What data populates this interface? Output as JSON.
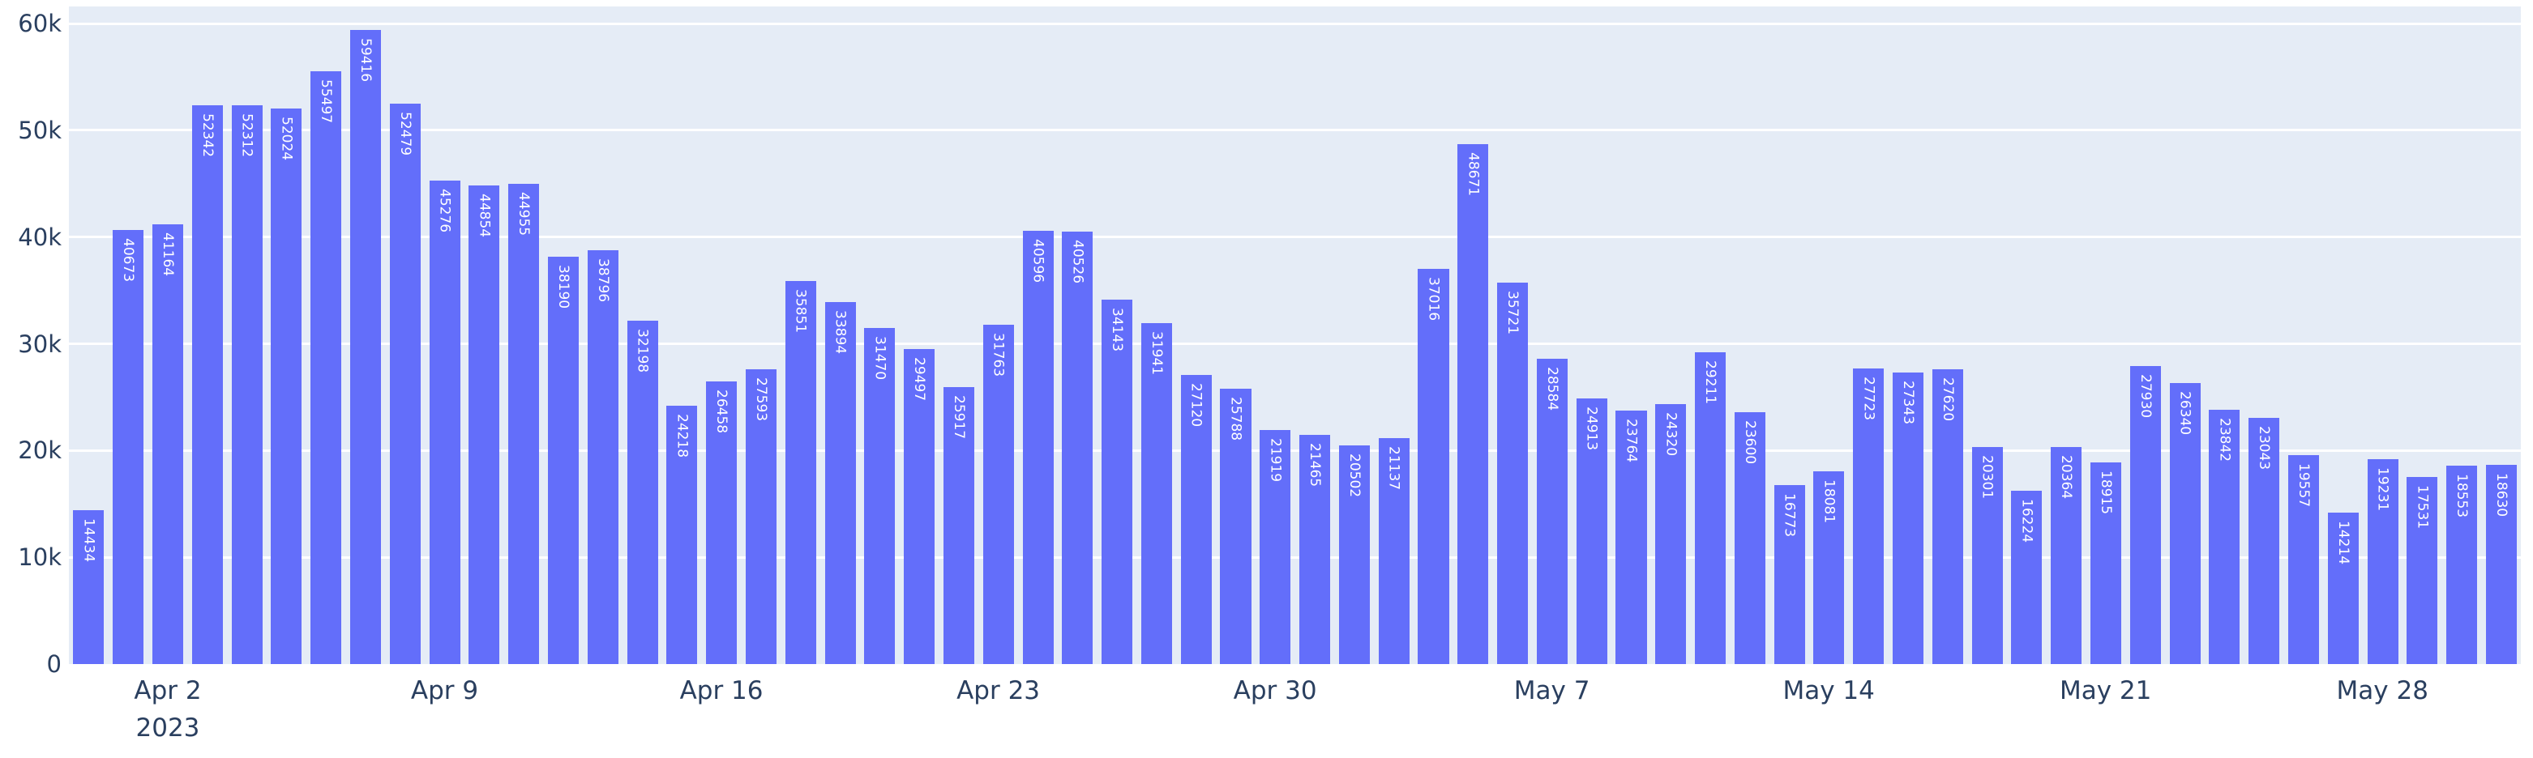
{
  "chart": {
    "colors": {
      "figure_background": "#ffffff",
      "plot_background": "#e5ecf6",
      "bar_fill": "#636efa",
      "gridline": "#ffffff",
      "tick_text": "#2a3f5f",
      "bar_label_text": "#ffffff"
    }
  },
  "chart_data": {
    "type": "bar",
    "title": "",
    "xlabel": "",
    "ylabel": "",
    "grid": true,
    "legend": "none",
    "bar_value_labels_style": "inside top, rotated 90deg, white",
    "ylim": [
      0,
      61600
    ],
    "x": [
      "2023-03-31",
      "2023-04-01",
      "2023-04-02",
      "2023-04-03",
      "2023-04-04",
      "2023-04-05",
      "2023-04-06",
      "2023-04-07",
      "2023-04-08",
      "2023-04-09",
      "2023-04-10",
      "2023-04-11",
      "2023-04-12",
      "2023-04-13",
      "2023-04-14",
      "2023-04-15",
      "2023-04-16",
      "2023-04-17",
      "2023-04-18",
      "2023-04-19",
      "2023-04-20",
      "2023-04-21",
      "2023-04-22",
      "2023-04-23",
      "2023-04-24",
      "2023-04-25",
      "2023-04-26",
      "2023-04-27",
      "2023-04-28",
      "2023-04-29",
      "2023-04-30",
      "2023-05-01",
      "2023-05-02",
      "2023-05-03",
      "2023-05-04",
      "2023-05-05",
      "2023-05-06",
      "2023-05-07",
      "2023-05-08",
      "2023-05-09",
      "2023-05-10",
      "2023-05-11",
      "2023-05-12",
      "2023-05-13",
      "2023-05-14",
      "2023-05-15",
      "2023-05-16",
      "2023-05-17",
      "2023-05-18",
      "2023-05-19",
      "2023-05-20",
      "2023-05-21",
      "2023-05-22",
      "2023-05-23",
      "2023-05-24",
      "2023-05-25",
      "2023-05-26",
      "2023-05-27",
      "2023-05-28",
      "2023-05-29",
      "2023-05-30",
      "2023-05-31"
    ],
    "values": [
      14434,
      40673,
      41164,
      52342,
      52312,
      52024,
      55497,
      59416,
      52479,
      45276,
      44854,
      44955,
      38190,
      38796,
      32198,
      24218,
      26458,
      27593,
      35851,
      33894,
      31470,
      29497,
      25917,
      31763,
      40596,
      40526,
      34143,
      31941,
      27120,
      25788,
      21919,
      21465,
      20502,
      21137,
      37016,
      48671,
      35721,
      28584,
      24913,
      23764,
      24320,
      29211,
      23600,
      16773,
      18081,
      27723,
      27343,
      27620,
      20301,
      16224,
      20364,
      18915,
      27930,
      26340,
      23842,
      23043,
      19557,
      14214,
      19231,
      17531,
      18553,
      18630
    ],
    "yticks": [
      {
        "value": 0,
        "label": "0"
      },
      {
        "value": 10000,
        "label": "10k"
      },
      {
        "value": 20000,
        "label": "20k"
      },
      {
        "value": 30000,
        "label": "30k"
      },
      {
        "value": 40000,
        "label": "40k"
      },
      {
        "value": 50000,
        "label": "50k"
      },
      {
        "value": 60000,
        "label": "60k"
      }
    ],
    "xticks": [
      {
        "index": 2,
        "label": "Apr 2",
        "sublabel": "2023"
      },
      {
        "index": 9,
        "label": "Apr 9",
        "sublabel": ""
      },
      {
        "index": 16,
        "label": "Apr 16",
        "sublabel": ""
      },
      {
        "index": 23,
        "label": "Apr 23",
        "sublabel": ""
      },
      {
        "index": 30,
        "label": "Apr 30",
        "sublabel": ""
      },
      {
        "index": 37,
        "label": "May 7",
        "sublabel": ""
      },
      {
        "index": 44,
        "label": "May 14",
        "sublabel": ""
      },
      {
        "index": 51,
        "label": "May 21",
        "sublabel": ""
      },
      {
        "index": 58,
        "label": "May 28",
        "sublabel": ""
      }
    ]
  }
}
